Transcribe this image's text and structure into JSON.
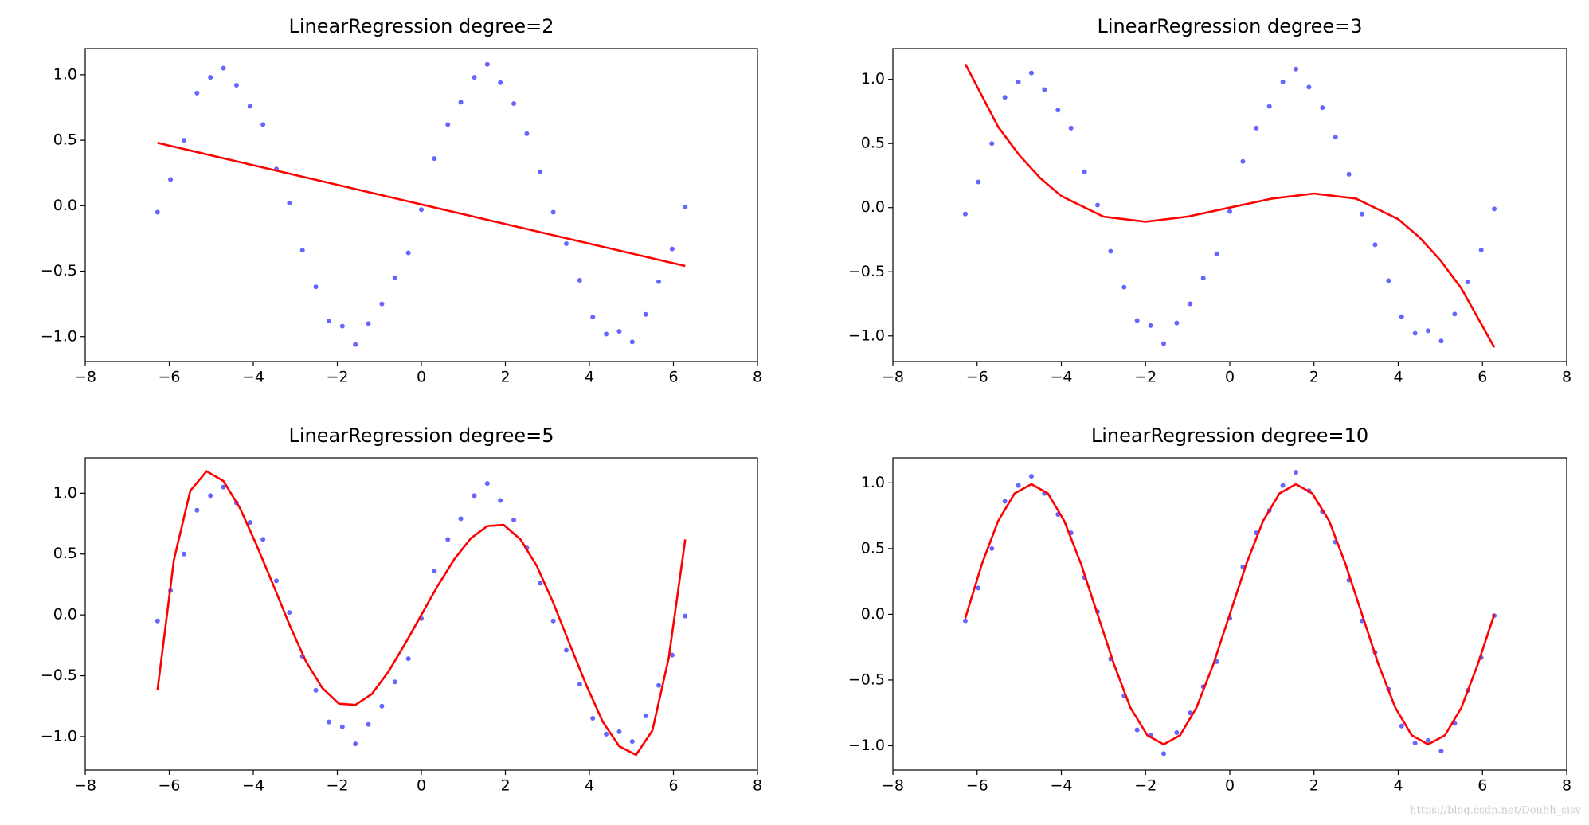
{
  "chart_data": [
    {
      "type": "scatter-line",
      "title": "LinearRegression degree=2",
      "xlim": [
        -8,
        8
      ],
      "ylim": [
        -1.19,
        1.2
      ],
      "xticks": [
        {
          "value": -8,
          "label": "−8"
        },
        {
          "value": -6,
          "label": "−6"
        },
        {
          "value": -4,
          "label": "−4"
        },
        {
          "value": -2,
          "label": "−2"
        },
        0,
        2,
        4,
        6,
        8
      ],
      "yticks": [
        {
          "value": -1,
          "label": "−1.0"
        },
        {
          "value": -0.5,
          "label": "−0.5"
        },
        {
          "value": 0,
          "label": "0.0"
        },
        {
          "value": 0.5,
          "label": "0.5"
        },
        {
          "value": 1,
          "label": "1.0"
        }
      ],
      "scatter": {
        "color": "#0000ff",
        "x": [
          -6.28,
          -5.97,
          -5.65,
          -5.34,
          -5.02,
          -4.71,
          -4.4,
          -4.08,
          -3.77,
          -3.45,
          -3.14,
          -2.83,
          -2.51,
          -2.2,
          -1.88,
          -1.57,
          -1.26,
          -0.94,
          -0.63,
          -0.31,
          0,
          0.31,
          0.63,
          0.94,
          1.26,
          1.57,
          1.88,
          2.2,
          2.51,
          2.83,
          3.14,
          3.45,
          3.77,
          4.08,
          4.4,
          4.71,
          5.02,
          5.34,
          5.65,
          5.97,
          6.28
        ],
        "y": [
          -0.05,
          0.2,
          0.5,
          0.86,
          0.98,
          1.05,
          0.92,
          0.76,
          0.62,
          0.28,
          0.02,
          -0.34,
          -0.62,
          -0.88,
          -0.92,
          -1.06,
          -0.9,
          -0.75,
          -0.55,
          -0.36,
          -0.03,
          0.36,
          0.62,
          0.79,
          0.98,
          1.08,
          0.94,
          0.78,
          0.55,
          0.26,
          -0.05,
          -0.29,
          -0.57,
          -0.85,
          -0.98,
          -0.96,
          -1.04,
          -0.83,
          -0.58,
          -0.33,
          -0.01
        ]
      },
      "line": {
        "color": "#ff0000",
        "x": [
          -6.28,
          6.28
        ],
        "y": [
          0.48,
          -0.46
        ]
      }
    },
    {
      "type": "scatter-line",
      "title": "LinearRegression degree=3",
      "xlim": [
        -8,
        8
      ],
      "ylim": [
        -1.2,
        1.24
      ],
      "xticks": [
        {
          "value": -8,
          "label": "−8"
        },
        {
          "value": -6,
          "label": "−6"
        },
        {
          "value": -4,
          "label": "−4"
        },
        {
          "value": -2,
          "label": "−2"
        },
        0,
        2,
        4,
        6,
        8
      ],
      "yticks": [
        {
          "value": -1,
          "label": "−1.0"
        },
        {
          "value": -0.5,
          "label": "−0.5"
        },
        {
          "value": 0,
          "label": "0.0"
        },
        {
          "value": 0.5,
          "label": "0.5"
        },
        {
          "value": 1,
          "label": "1.0"
        }
      ],
      "scatter": {
        "color": "#0000ff",
        "x": [
          -6.28,
          -5.97,
          -5.65,
          -5.34,
          -5.02,
          -4.71,
          -4.4,
          -4.08,
          -3.77,
          -3.45,
          -3.14,
          -2.83,
          -2.51,
          -2.2,
          -1.88,
          -1.57,
          -1.26,
          -0.94,
          -0.63,
          -0.31,
          0,
          0.31,
          0.63,
          0.94,
          1.26,
          1.57,
          1.88,
          2.2,
          2.51,
          2.83,
          3.14,
          3.45,
          3.77,
          4.08,
          4.4,
          4.71,
          5.02,
          5.34,
          5.65,
          5.97,
          6.28
        ],
        "y": [
          -0.05,
          0.2,
          0.5,
          0.86,
          0.98,
          1.05,
          0.92,
          0.76,
          0.62,
          0.28,
          0.02,
          -0.34,
          -0.62,
          -0.88,
          -0.92,
          -1.06,
          -0.9,
          -0.75,
          -0.55,
          -0.36,
          -0.03,
          0.36,
          0.62,
          0.79,
          0.98,
          1.08,
          0.94,
          0.78,
          0.55,
          0.26,
          -0.05,
          -0.29,
          -0.57,
          -0.85,
          -0.98,
          -0.96,
          -1.04,
          -0.83,
          -0.58,
          -0.33,
          -0.01
        ]
      },
      "line": {
        "color": "#ff0000",
        "x": [
          -6.28,
          -5.5,
          -5,
          -4.5,
          -4,
          -3,
          -2,
          -1,
          0,
          1,
          2,
          3,
          4,
          4.5,
          5,
          5.5,
          6.28
        ],
        "y": [
          1.12,
          0.63,
          0.41,
          0.23,
          0.09,
          -0.07,
          -0.11,
          -0.07,
          0,
          0.07,
          0.11,
          0.07,
          -0.09,
          -0.23,
          -0.41,
          -0.63,
          -1.09
        ]
      }
    },
    {
      "type": "scatter-line",
      "title": "LinearRegression degree=5",
      "xlim": [
        -8,
        8
      ],
      "ylim": [
        -1.275,
        1.29
      ],
      "xticks": [
        {
          "value": -8,
          "label": "−8"
        },
        {
          "value": -6,
          "label": "−6"
        },
        {
          "value": -4,
          "label": "−4"
        },
        {
          "value": -2,
          "label": "−2"
        },
        0,
        2,
        4,
        6,
        8
      ],
      "yticks": [
        {
          "value": -1,
          "label": "−1.0"
        },
        {
          "value": -0.5,
          "label": "−0.5"
        },
        {
          "value": 0,
          "label": "0.0"
        },
        {
          "value": 0.5,
          "label": "0.5"
        },
        {
          "value": 1,
          "label": "1.0"
        }
      ],
      "scatter": {
        "color": "#0000ff",
        "x": [
          -6.28,
          -5.97,
          -5.65,
          -5.34,
          -5.02,
          -4.71,
          -4.4,
          -4.08,
          -3.77,
          -3.45,
          -3.14,
          -2.83,
          -2.51,
          -2.2,
          -1.88,
          -1.57,
          -1.26,
          -0.94,
          -0.63,
          -0.31,
          0,
          0.31,
          0.63,
          0.94,
          1.26,
          1.57,
          1.88,
          2.2,
          2.51,
          2.83,
          3.14,
          3.45,
          3.77,
          4.08,
          4.4,
          4.71,
          5.02,
          5.34,
          5.65,
          5.97,
          6.28
        ],
        "y": [
          -0.05,
          0.2,
          0.5,
          0.86,
          0.98,
          1.05,
          0.92,
          0.76,
          0.62,
          0.28,
          0.02,
          -0.34,
          -0.62,
          -0.88,
          -0.92,
          -1.06,
          -0.9,
          -0.75,
          -0.55,
          -0.36,
          -0.03,
          0.36,
          0.62,
          0.79,
          0.98,
          1.08,
          0.94,
          0.78,
          0.55,
          0.26,
          -0.05,
          -0.29,
          -0.57,
          -0.85,
          -0.98,
          -0.96,
          -1.04,
          -0.83,
          -0.58,
          -0.33,
          -0.01
        ]
      },
      "line": {
        "color": "#ff0000",
        "x": [
          -6.28,
          -5.89,
          -5.5,
          -5.11,
          -4.71,
          -4.32,
          -3.93,
          -3.53,
          -3.14,
          -2.75,
          -2.36,
          -1.96,
          -1.57,
          -1.18,
          -0.79,
          -0.39,
          0,
          0.39,
          0.79,
          1.18,
          1.57,
          1.96,
          2.36,
          2.75,
          3.14,
          3.53,
          3.93,
          4.32,
          4.71,
          5.11,
          5.5,
          5.89,
          6.28
        ],
        "y": [
          -0.62,
          0.45,
          1.02,
          1.18,
          1.1,
          0.88,
          0.58,
          0.25,
          -0.08,
          -0.38,
          -0.6,
          -0.73,
          -0.74,
          -0.65,
          -0.47,
          -0.24,
          0,
          0.24,
          0.46,
          0.63,
          0.73,
          0.74,
          0.62,
          0.4,
          0.1,
          -0.24,
          -0.58,
          -0.88,
          -1.08,
          -1.15,
          -0.95,
          -0.35,
          0.62
        ]
      }
    },
    {
      "type": "scatter-line",
      "title": "LinearRegression degree=10",
      "xlim": [
        -8,
        8
      ],
      "ylim": [
        -1.185,
        1.19
      ],
      "xticks": [
        {
          "value": -8,
          "label": "−8"
        },
        {
          "value": -6,
          "label": "−6"
        },
        {
          "value": -4,
          "label": "−4"
        },
        {
          "value": -2,
          "label": "−2"
        },
        0,
        2,
        4,
        6,
        8
      ],
      "yticks": [
        {
          "value": -1,
          "label": "−1.0"
        },
        {
          "value": -0.5,
          "label": "−0.5"
        },
        {
          "value": 0,
          "label": "0.0"
        },
        {
          "value": 0.5,
          "label": "0.5"
        },
        {
          "value": 1,
          "label": "1.0"
        }
      ],
      "scatter": {
        "color": "#0000ff",
        "x": [
          -6.28,
          -5.97,
          -5.65,
          -5.34,
          -5.02,
          -4.71,
          -4.4,
          -4.08,
          -3.77,
          -3.45,
          -3.14,
          -2.83,
          -2.51,
          -2.2,
          -1.88,
          -1.57,
          -1.26,
          -0.94,
          -0.63,
          -0.31,
          0,
          0.31,
          0.63,
          0.94,
          1.26,
          1.57,
          1.88,
          2.2,
          2.51,
          2.83,
          3.14,
          3.45,
          3.77,
          4.08,
          4.4,
          4.71,
          5.02,
          5.34,
          5.65,
          5.97,
          6.28
        ],
        "y": [
          -0.05,
          0.2,
          0.5,
          0.86,
          0.98,
          1.05,
          0.92,
          0.76,
          0.62,
          0.28,
          0.02,
          -0.34,
          -0.62,
          -0.88,
          -0.92,
          -1.06,
          -0.9,
          -0.75,
          -0.55,
          -0.36,
          -0.03,
          0.36,
          0.62,
          0.79,
          0.98,
          1.08,
          0.94,
          0.78,
          0.55,
          0.26,
          -0.05,
          -0.29,
          -0.57,
          -0.85,
          -0.98,
          -0.96,
          -1.04,
          -0.83,
          -0.58,
          -0.33,
          -0.01
        ]
      },
      "line": {
        "color": "#ff0000",
        "x": [
          -6.28,
          -5.89,
          -5.5,
          -5.11,
          -4.71,
          -4.32,
          -3.93,
          -3.53,
          -3.14,
          -2.75,
          -2.36,
          -1.96,
          -1.57,
          -1.18,
          -0.79,
          -0.39,
          0,
          0.39,
          0.79,
          1.18,
          1.57,
          1.96,
          2.36,
          2.75,
          3.14,
          3.53,
          3.93,
          4.32,
          4.71,
          5.11,
          5.5,
          5.89,
          6.28
        ],
        "y": [
          -0.03,
          0.38,
          0.71,
          0.92,
          0.99,
          0.92,
          0.71,
          0.38,
          0,
          -0.38,
          -0.71,
          -0.92,
          -0.99,
          -0.92,
          -0.71,
          -0.38,
          0,
          0.38,
          0.71,
          0.92,
          0.99,
          0.92,
          0.71,
          0.38,
          0,
          -0.38,
          -0.71,
          -0.92,
          -0.99,
          -0.92,
          -0.71,
          -0.38,
          0
        ]
      }
    }
  ],
  "watermark": "https://blog.csdn.net/Douhh_sisy"
}
